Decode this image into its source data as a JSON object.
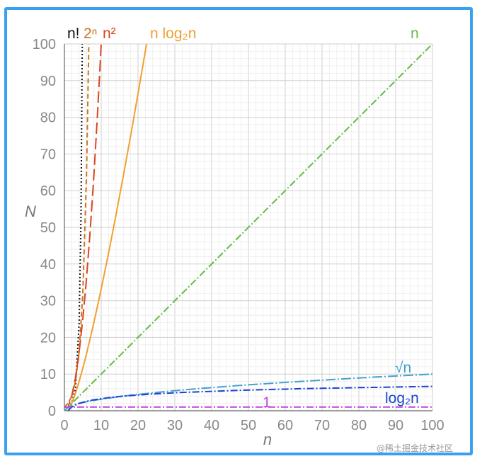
{
  "chart_data": {
    "type": "line",
    "xlabel": "n",
    "ylabel": "N",
    "xlim": [
      0,
      100
    ],
    "ylim": [
      0,
      100
    ],
    "grid": true,
    "x_ticks": [
      "0",
      "10",
      "20",
      "30",
      "40",
      "50",
      "60",
      "70",
      "80",
      "90",
      "100"
    ],
    "y_ticks": [
      "0",
      "10",
      "20",
      "30",
      "40",
      "50",
      "60",
      "70",
      "80",
      "90",
      "100"
    ],
    "series": [
      {
        "name": "n!",
        "color": "#111111",
        "dash": "2,3",
        "x": [
          0,
          1,
          2,
          3,
          4,
          4.5,
          5
        ],
        "y": [
          1,
          1,
          2,
          6,
          24,
          52.3,
          120
        ]
      },
      {
        "name": "2ⁿ",
        "color": "#c9761f",
        "dash": "7,4",
        "x": [
          0,
          1,
          2,
          3,
          4,
          5,
          6,
          6.64,
          7
        ],
        "y": [
          1,
          2,
          4,
          8,
          16,
          32,
          64,
          100,
          128
        ]
      },
      {
        "name": "n²",
        "color": "#dd4422",
        "dash": "16,6",
        "x": [
          0,
          1,
          2,
          3,
          4,
          5,
          6,
          7,
          8,
          9,
          10,
          11
        ],
        "y": [
          0,
          1,
          4,
          9,
          16,
          25,
          36,
          49,
          64,
          81,
          100,
          121
        ]
      },
      {
        "name": "n log₂n",
        "color": "#f0a030",
        "dash": "",
        "x": [
          1,
          2,
          3,
          4,
          5,
          6,
          8,
          10,
          12,
          14,
          16,
          18,
          20,
          22,
          24
        ],
        "y": [
          0,
          2,
          4.75,
          8,
          11.6,
          15.5,
          24,
          33.2,
          43,
          53.3,
          64,
          75,
          86.4,
          98.1,
          110
        ]
      },
      {
        "name": "n",
        "color": "#66bb44",
        "dash": "10,3,2,3",
        "x": [
          0,
          100
        ],
        "y": [
          0,
          100
        ]
      },
      {
        "name": "√n",
        "color": "#44a0d0",
        "dash": "14,3,2,3",
        "x": [
          0,
          1,
          2,
          4,
          6,
          9,
          16,
          25,
          36,
          49,
          64,
          81,
          100
        ],
        "y": [
          0,
          1,
          1.41,
          2,
          2.45,
          3,
          4,
          5,
          6,
          7,
          8,
          9,
          10
        ]
      },
      {
        "name": "log₂n",
        "color": "#1a44cc",
        "dash": "10,3,2,3",
        "x": [
          1,
          1.5,
          2,
          3,
          4,
          6,
          8,
          12,
          16,
          24,
          32,
          48,
          64,
          80,
          100
        ],
        "y": [
          0,
          0.58,
          1,
          1.58,
          2,
          2.58,
          3,
          3.58,
          4,
          4.58,
          5,
          5.58,
          6,
          6.32,
          6.64
        ]
      },
      {
        "name": "1",
        "color": "#bb44dd",
        "dash": "10,3,2,3",
        "x": [
          0,
          100
        ],
        "y": [
          1,
          1
        ]
      }
    ]
  },
  "watermark": "@稀土掘金技术社区"
}
